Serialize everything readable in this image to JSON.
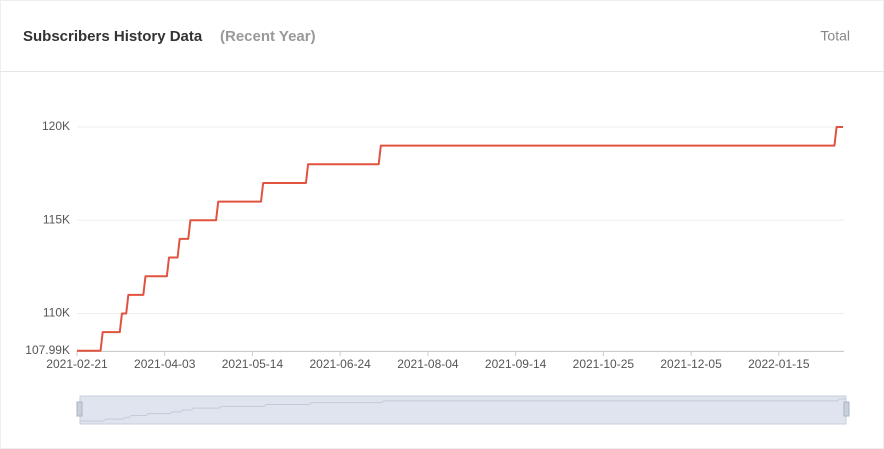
{
  "chart_data": {
    "type": "line",
    "title": "Subscribers History Data",
    "subtitle": "(Recent Year)",
    "x": [
      "2021-02-21",
      "2021-03-04",
      "2021-03-05",
      "2021-03-13",
      "2021-03-14",
      "2021-03-16",
      "2021-03-17",
      "2021-03-24",
      "2021-03-25",
      "2021-04-04",
      "2021-04-05",
      "2021-04-09",
      "2021-04-10",
      "2021-04-14",
      "2021-04-15",
      "2021-04-27",
      "2021-04-28",
      "2021-05-18",
      "2021-05-19",
      "2021-06-08",
      "2021-06-09",
      "2021-07-12",
      "2021-07-13",
      "2022-02-10",
      "2022-02-11",
      "2022-02-14"
    ],
    "series": [
      {
        "name": "Total",
        "color": "#e0533f",
        "values": [
          108000,
          108000,
          109000,
          109000,
          110000,
          110000,
          111000,
          111000,
          112000,
          112000,
          113000,
          113000,
          114000,
          114000,
          115000,
          115000,
          116000,
          116000,
          117000,
          117000,
          118000,
          118000,
          119000,
          119000,
          120000,
          120000
        ]
      }
    ],
    "xlim": [
      "2021-02-21",
      "2022-02-14"
    ],
    "xticks": [
      "2021-02-21",
      "2021-04-03",
      "2021-05-14",
      "2021-06-24",
      "2021-08-04",
      "2021-09-14",
      "2021-10-25",
      "2021-12-05",
      "2022-01-15"
    ],
    "ylim": [
      107990,
      120000
    ],
    "yticks": [
      {
        "value": 107990,
        "label": "107.99K"
      },
      {
        "value": 110000,
        "label": "110K"
      },
      {
        "value": 115000,
        "label": "115K"
      },
      {
        "value": 120000,
        "label": "120K"
      }
    ],
    "grid": true
  }
}
